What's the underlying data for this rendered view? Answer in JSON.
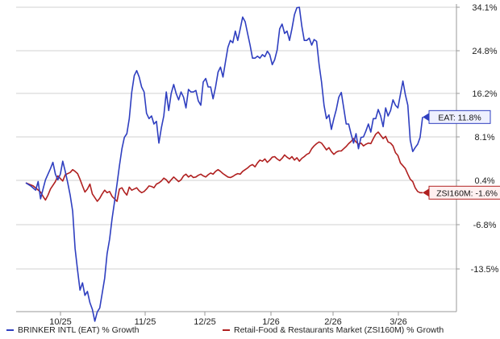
{
  "chart_data": {
    "type": "line",
    "x_ticks": [
      "10/25",
      "11/25",
      "12/25",
      "1/26",
      "2/26",
      "3/26"
    ],
    "y_ticks": [
      "34.1%",
      "24.8%",
      "16.2%",
      "8.1%",
      "0.4%",
      "-6.8%",
      "-13.5%"
    ],
    "ylim": [
      -21.5,
      34.1
    ],
    "y_axis_side": "right",
    "grid": "horizontal, gray",
    "legend_placement": "bottom-left",
    "series": [
      {
        "name": "BRINKER INTL (EAT) % Growth",
        "color": "#2f3fc0",
        "end_label": "EAT: 11.8%",
        "points": [
          [
            0,
            0
          ],
          [
            2,
            -0.5
          ],
          [
            4,
            -1.2
          ],
          [
            5,
            0.2
          ],
          [
            6,
            -2.6
          ],
          [
            7,
            -1.0
          ],
          [
            8,
            0.5
          ],
          [
            10,
            2.5
          ],
          [
            11,
            3.6
          ],
          [
            12,
            1.5
          ],
          [
            13,
            0.5
          ],
          [
            14,
            1.5
          ],
          [
            15,
            3.8
          ],
          [
            16,
            2.0
          ],
          [
            17,
            0.0
          ],
          [
            18,
            -2.0
          ],
          [
            19,
            -4.6
          ],
          [
            20,
            -10.4
          ],
          [
            21,
            -13.7
          ],
          [
            22,
            -16.7
          ],
          [
            23,
            -15.6
          ],
          [
            24,
            -17.5
          ],
          [
            25,
            -16.9
          ],
          [
            26,
            -18.6
          ],
          [
            27,
            -19.6
          ],
          [
            28,
            -21.4
          ],
          [
            29,
            -20.0
          ],
          [
            30,
            -19.4
          ],
          [
            31,
            -17.2
          ],
          [
            32,
            -14.9
          ],
          [
            33,
            -11.2
          ],
          [
            34,
            -9.0
          ],
          [
            35,
            -5.8
          ],
          [
            36,
            -3.1
          ],
          [
            37,
            -0.2
          ],
          [
            38,
            3.0
          ],
          [
            39,
            6.0
          ],
          [
            40,
            8.0
          ],
          [
            41,
            8.7
          ],
          [
            42,
            11.5
          ],
          [
            43,
            16.5
          ],
          [
            44,
            19.8
          ],
          [
            45,
            20.8
          ],
          [
            46,
            19.5
          ],
          [
            47,
            17.5
          ],
          [
            48,
            16.5
          ],
          [
            49,
            12.5
          ],
          [
            50,
            11.5
          ],
          [
            51,
            12.0
          ],
          [
            52,
            10.5
          ],
          [
            53,
            11.0
          ],
          [
            54,
            7.0
          ],
          [
            55,
            9.8
          ],
          [
            56,
            12.0
          ],
          [
            57,
            16.5
          ],
          [
            58,
            13.0
          ],
          [
            59,
            16.2
          ],
          [
            60,
            18.0
          ],
          [
            61,
            16.2
          ],
          [
            62,
            15.0
          ],
          [
            63,
            16.5
          ],
          [
            64,
            15.5
          ],
          [
            65,
            13.5
          ],
          [
            66,
            17.0
          ],
          [
            67,
            16.5
          ],
          [
            68,
            16.5
          ],
          [
            69,
            16.8
          ],
          [
            70,
            14.8
          ],
          [
            71,
            14.0
          ],
          [
            72,
            18.5
          ],
          [
            73,
            19.2
          ],
          [
            74,
            17.5
          ],
          [
            75,
            17.5
          ],
          [
            76,
            15.2
          ],
          [
            77,
            17.5
          ],
          [
            78,
            20.5
          ],
          [
            79,
            21.5
          ],
          [
            80,
            19.5
          ],
          [
            81,
            22.5
          ],
          [
            82,
            25.5
          ],
          [
            83,
            27.0
          ],
          [
            84,
            26.5
          ],
          [
            85,
            29.0
          ],
          [
            86,
            27.0
          ],
          [
            87,
            29.5
          ],
          [
            88,
            32.0
          ],
          [
            89,
            31.0
          ],
          [
            90,
            28.5
          ],
          [
            91,
            26.0
          ],
          [
            92,
            23.3
          ],
          [
            93,
            23.3
          ],
          [
            94,
            23.7
          ],
          [
            95,
            23.3
          ],
          [
            96,
            24.0
          ],
          [
            97,
            23.6
          ],
          [
            98,
            24.7
          ],
          [
            99,
            24.0
          ],
          [
            100,
            22.0
          ],
          [
            101,
            23.0
          ],
          [
            102,
            25.0
          ],
          [
            103,
            29.5
          ],
          [
            104,
            30.5
          ],
          [
            105,
            28.5
          ],
          [
            106,
            29.0
          ],
          [
            107,
            27.0
          ],
          [
            108,
            29.5
          ],
          [
            109,
            32.5
          ],
          [
            110,
            34.0
          ],
          [
            111,
            34.1
          ],
          [
            112,
            30.0
          ],
          [
            113,
            27.0
          ],
          [
            114,
            27.0
          ],
          [
            115,
            27.5
          ],
          [
            116,
            26.0
          ],
          [
            117,
            27.2
          ],
          [
            118,
            26.8
          ],
          [
            119,
            22.0
          ],
          [
            120,
            18.5
          ],
          [
            121,
            14.0
          ],
          [
            122,
            11.5
          ],
          [
            123,
            12.2
          ],
          [
            124,
            9.5
          ],
          [
            125,
            11.5
          ],
          [
            126,
            13.2
          ],
          [
            127,
            15.5
          ],
          [
            128,
            16.4
          ],
          [
            129,
            13.5
          ],
          [
            130,
            10.5
          ],
          [
            131,
            10.5
          ],
          [
            132,
            8.6
          ],
          [
            133,
            7.0
          ],
          [
            134,
            8.7
          ],
          [
            135,
            6.0
          ],
          [
            136,
            8.0
          ],
          [
            137,
            8.1
          ],
          [
            138,
            9.2
          ],
          [
            139,
            10.5
          ],
          [
            140,
            9.0
          ],
          [
            141,
            11.5
          ],
          [
            142,
            11.5
          ],
          [
            143,
            13.2
          ],
          [
            144,
            12.0
          ],
          [
            145,
            10.0
          ],
          [
            146,
            13.5
          ],
          [
            147,
            12.0
          ],
          [
            148,
            13.0
          ],
          [
            149,
            15.0
          ],
          [
            150,
            14.0
          ],
          [
            151,
            13.5
          ],
          [
            152,
            16.0
          ],
          [
            153,
            18.7
          ],
          [
            154,
            16.0
          ],
          [
            155,
            14.0
          ],
          [
            156,
            7.5
          ],
          [
            157,
            5.5
          ],
          [
            158,
            6.2
          ],
          [
            159,
            6.8
          ],
          [
            160,
            8.0
          ],
          [
            161,
            11.8
          ]
        ]
      },
      {
        "name": "Retail-Food & Restaurants Market (ZSI160M) % Growth",
        "color": "#b02020",
        "end_label": "ZSI160M: -1.6%",
        "points": [
          [
            0,
            0
          ],
          [
            3,
            -0.5
          ],
          [
            6,
            -1.5
          ],
          [
            7,
            -2.2
          ],
          [
            8,
            -2.8
          ],
          [
            9,
            -2.0
          ],
          [
            10,
            -1.0
          ],
          [
            12,
            0.2
          ],
          [
            13,
            1.2
          ],
          [
            15,
            0.3
          ],
          [
            16,
            1.4
          ],
          [
            18,
            1.8
          ],
          [
            19,
            2.3
          ],
          [
            20,
            2.0
          ],
          [
            21,
            1.6
          ],
          [
            22,
            0.6
          ],
          [
            23,
            -0.5
          ],
          [
            24,
            -1.5
          ],
          [
            25,
            -1.0
          ],
          [
            26,
            -0.2
          ],
          [
            27,
            -1.8
          ],
          [
            28,
            -2.4
          ],
          [
            29,
            -3.0
          ],
          [
            30,
            -2.5
          ],
          [
            31,
            -1.8
          ],
          [
            32,
            -1.2
          ],
          [
            33,
            -1.6
          ],
          [
            34,
            -1.4
          ],
          [
            35,
            -2.2
          ],
          [
            36,
            -2.6
          ],
          [
            37,
            -3.0
          ],
          [
            38,
            -1.0
          ],
          [
            39,
            -0.8
          ],
          [
            40,
            -1.5
          ],
          [
            41,
            -2.0
          ],
          [
            42,
            -0.7
          ],
          [
            43,
            -1.2
          ],
          [
            44,
            -1.0
          ],
          [
            45,
            -0.8
          ],
          [
            46,
            -1.3
          ],
          [
            47,
            -1.6
          ],
          [
            48,
            -1.4
          ],
          [
            49,
            -1.0
          ],
          [
            50,
            -0.5
          ],
          [
            51,
            -0.6
          ],
          [
            52,
            -0.8
          ],
          [
            53,
            -0.2
          ],
          [
            54,
            0.0
          ],
          [
            55,
            0.3
          ],
          [
            56,
            0.8
          ],
          [
            57,
            0.5
          ],
          [
            58,
            0.0
          ],
          [
            59,
            0.5
          ],
          [
            60,
            1.0
          ],
          [
            61,
            0.6
          ],
          [
            62,
            0.2
          ],
          [
            63,
            0.5
          ],
          [
            64,
            1.2
          ],
          [
            65,
            1.5
          ],
          [
            66,
            1.0
          ],
          [
            67,
            1.3
          ],
          [
            68,
            0.9
          ],
          [
            69,
            1.0
          ],
          [
            70,
            1.3
          ],
          [
            71,
            1.5
          ],
          [
            72,
            1.2
          ],
          [
            73,
            1.0
          ],
          [
            74,
            1.4
          ],
          [
            75,
            1.7
          ],
          [
            76,
            1.5
          ],
          [
            77,
            2.0
          ],
          [
            78,
            2.3
          ],
          [
            79,
            2.0
          ],
          [
            80,
            1.6
          ],
          [
            81,
            1.3
          ],
          [
            82,
            1.0
          ],
          [
            83,
            0.9
          ],
          [
            84,
            1.1
          ],
          [
            85,
            1.4
          ],
          [
            86,
            1.6
          ],
          [
            87,
            1.5
          ],
          [
            88,
            2.0
          ],
          [
            89,
            2.3
          ],
          [
            90,
            2.6
          ],
          [
            91,
            3.0
          ],
          [
            92,
            3.2
          ],
          [
            93,
            2.8
          ],
          [
            94,
            3.5
          ],
          [
            95,
            4.0
          ],
          [
            96,
            3.8
          ],
          [
            97,
            4.2
          ],
          [
            98,
            3.6
          ],
          [
            99,
            4.0
          ],
          [
            100,
            4.5
          ],
          [
            101,
            4.6
          ],
          [
            102,
            4.2
          ],
          [
            103,
            3.9
          ],
          [
            104,
            4.3
          ],
          [
            105,
            4.9
          ],
          [
            106,
            4.5
          ],
          [
            107,
            4.2
          ],
          [
            108,
            4.6
          ],
          [
            109,
            4.0
          ],
          [
            110,
            4.4
          ],
          [
            111,
            3.8
          ],
          [
            112,
            4.3
          ],
          [
            113,
            4.6
          ],
          [
            114,
            5.0
          ],
          [
            115,
            5.2
          ],
          [
            116,
            6.0
          ],
          [
            117,
            6.5
          ],
          [
            118,
            6.9
          ],
          [
            119,
            7.2
          ],
          [
            120,
            7.0
          ],
          [
            121,
            6.4
          ],
          [
            122,
            5.8
          ],
          [
            123,
            6.2
          ],
          [
            124,
            5.5
          ],
          [
            125,
            5.0
          ],
          [
            126,
            5.4
          ],
          [
            127,
            5.6
          ],
          [
            128,
            5.6
          ],
          [
            129,
            6.0
          ],
          [
            130,
            6.4
          ],
          [
            131,
            6.9
          ],
          [
            132,
            7.3
          ],
          [
            133,
            7.8
          ],
          [
            134,
            7.2
          ],
          [
            135,
            6.8
          ],
          [
            136,
            7.0
          ],
          [
            137,
            6.5
          ],
          [
            138,
            6.8
          ],
          [
            139,
            7.0
          ],
          [
            140,
            6.9
          ],
          [
            141,
            7.8
          ],
          [
            142,
            8.6
          ],
          [
            143,
            9.0
          ],
          [
            144,
            8.4
          ],
          [
            145,
            7.8
          ],
          [
            146,
            8.2
          ],
          [
            147,
            7.2
          ],
          [
            148,
            7.0
          ],
          [
            149,
            6.5
          ],
          [
            150,
            5.3
          ],
          [
            151,
            4.8
          ],
          [
            152,
            3.5
          ],
          [
            153,
            3.0
          ],
          [
            154,
            2.5
          ],
          [
            155,
            1.5
          ],
          [
            156,
            0.6
          ],
          [
            157,
            0.2
          ],
          [
            158,
            -0.8
          ],
          [
            159,
            -1.4
          ],
          [
            160,
            -1.6
          ],
          [
            161,
            -1.6
          ]
        ]
      }
    ]
  }
}
